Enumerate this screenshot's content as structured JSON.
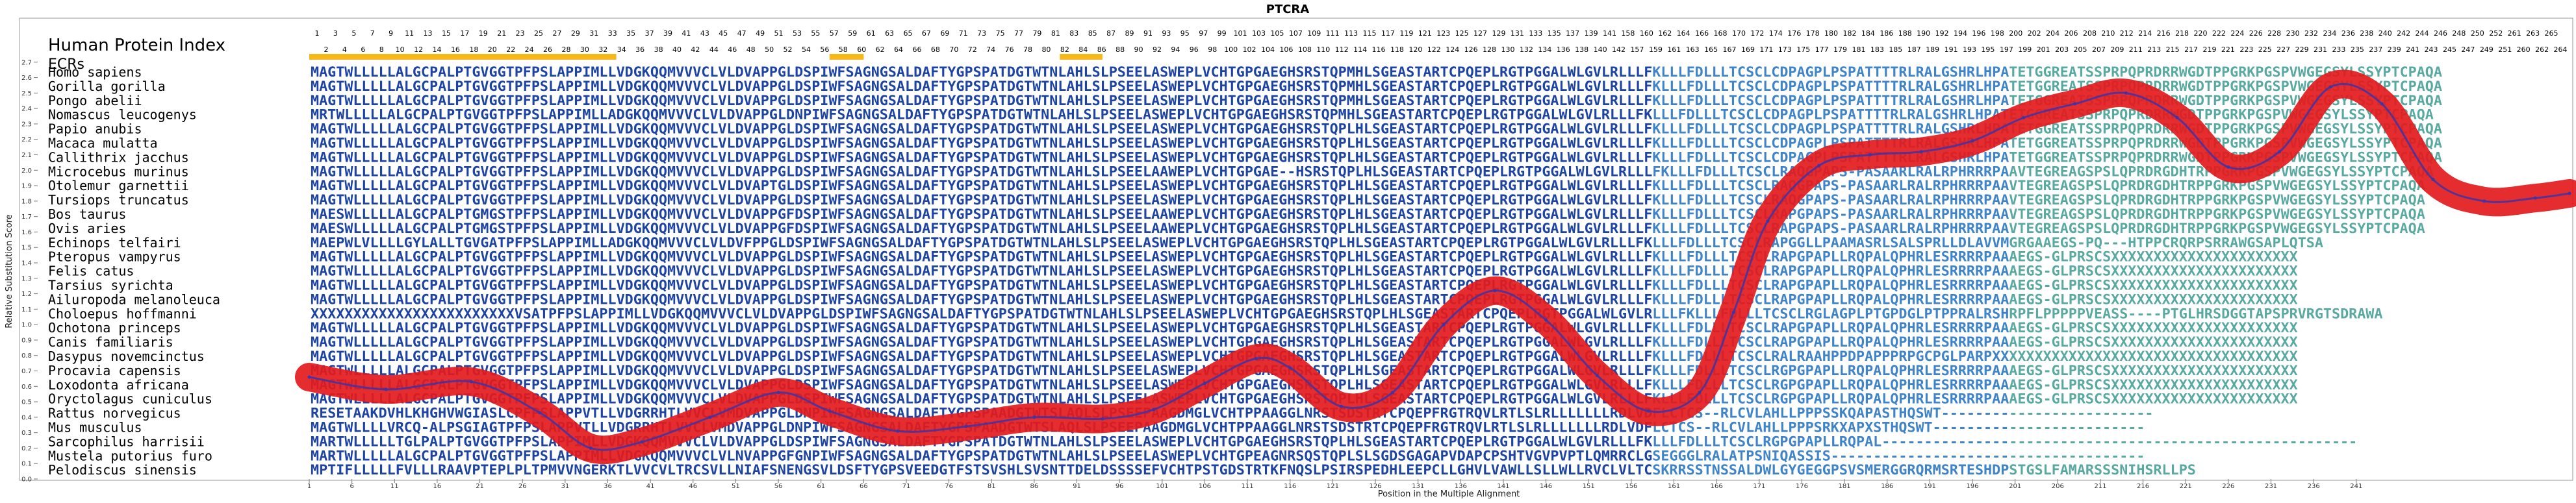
{
  "chart_data": {
    "type": "line",
    "title": "PTCRA",
    "xlabel": "Position in the Multiple Alignment",
    "ylabel": "Relative Substitution Score",
    "xlim": [
      1,
      266
    ],
    "ylim": [
      0,
      2.8
    ],
    "y_ticks": [
      0.0,
      0.1,
      0.2,
      0.3,
      0.4,
      0.5,
      0.6,
      0.7,
      0.8,
      0.9,
      1.0,
      1.1,
      1.2,
      1.3,
      1.4,
      1.5,
      1.6,
      1.7,
      1.8,
      1.9,
      2.0,
      2.1,
      2.2,
      2.3,
      2.4,
      2.5,
      2.6,
      2.7
    ],
    "x_ticks": [
      1,
      6,
      11,
      16,
      21,
      26,
      31,
      36,
      41,
      46,
      51,
      56,
      61,
      66,
      71,
      76,
      81,
      86,
      91,
      96,
      101,
      106,
      111,
      116,
      121,
      126,
      131,
      136,
      141,
      146,
      151,
      156,
      161,
      166,
      171,
      176,
      181,
      186,
      191,
      196,
      201,
      206,
      211,
      216,
      221,
      226,
      231,
      236,
      241
    ],
    "hpi_label": "Human Protein Index",
    "ecr_label": "ECRs",
    "hpi_odd": [
      1,
      3,
      5,
      7,
      9,
      11,
      13,
      15,
      17,
      19,
      21,
      23,
      25,
      27,
      29,
      31,
      33,
      35,
      37,
      39,
      41,
      43,
      45,
      47,
      49,
      51,
      53,
      55,
      57,
      59,
      61,
      63,
      65,
      67,
      69,
      71,
      73,
      75,
      77,
      79,
      81,
      83,
      85,
      87,
      89,
      91,
      93,
      95,
      97,
      99,
      101,
      103,
      105,
      107,
      109,
      111,
      113,
      115,
      117,
      119,
      121,
      123,
      125,
      127,
      129,
      131,
      133,
      135,
      137,
      139,
      141,
      158,
      160,
      162,
      164,
      166,
      168,
      170,
      172,
      174,
      176,
      178,
      180,
      182,
      184,
      186,
      188,
      190,
      192,
      194,
      196,
      198,
      200,
      202,
      204,
      206,
      208,
      210,
      212,
      214,
      216,
      218,
      220,
      222,
      224,
      226,
      228,
      230,
      232,
      234,
      236,
      238,
      240,
      242,
      244,
      246,
      248,
      250,
      252,
      261,
      263,
      265
    ],
    "hpi_even": [
      2,
      4,
      6,
      8,
      10,
      12,
      14,
      16,
      18,
      20,
      22,
      24,
      26,
      28,
      30,
      32,
      34,
      36,
      38,
      40,
      42,
      44,
      46,
      48,
      50,
      52,
      54,
      56,
      58,
      60,
      62,
      64,
      66,
      68,
      70,
      72,
      74,
      76,
      78,
      80,
      82,
      84,
      86,
      88,
      90,
      92,
      94,
      96,
      98,
      100,
      102,
      104,
      106,
      108,
      110,
      112,
      114,
      116,
      118,
      120,
      122,
      124,
      126,
      128,
      130,
      132,
      134,
      136,
      138,
      140,
      142,
      157,
      159,
      161,
      163,
      165,
      167,
      169,
      171,
      173,
      175,
      177,
      179,
      181,
      183,
      185,
      187,
      189,
      191,
      193,
      195,
      197,
      199,
      201,
      203,
      205,
      207,
      209,
      211,
      213,
      215,
      217,
      219,
      221,
      223,
      225,
      227,
      229,
      231,
      233,
      235,
      237,
      239,
      241,
      243,
      245,
      247,
      249,
      251,
      260,
      262,
      264
    ],
    "ecr_regions": [
      [
        1,
        37
      ],
      [
        62,
        66
      ],
      [
        89,
        94
      ]
    ],
    "colors": {
      "curve_outer": "#e31a1c",
      "curve_inner": "#3a35a8",
      "ecr_bar": "#f6b81a",
      "seq_conserved": "#1d43a3",
      "seq_variable": "#3f83c9",
      "seq_divergent": "#58a9a0"
    },
    "series": [
      {
        "name": "",
        "x": [
          1,
          10,
          20,
          28,
          34,
          40,
          48,
          56,
          62,
          70,
          78,
          86,
          94,
          100,
          106,
          112,
          116,
          122,
          128,
          134,
          140,
          146,
          152,
          158,
          164,
          168,
          172,
          178,
          184,
          190,
          196,
          202,
          208,
          214,
          220,
          226,
          232,
          238,
          244,
          250,
          256,
          262,
          266
        ],
        "y": [
          0.66,
          0.58,
          0.63,
          0.43,
          0.2,
          0.24,
          0.4,
          0.56,
          0.44,
          0.31,
          0.34,
          0.4,
          0.39,
          0.45,
          0.62,
          0.78,
          0.72,
          0.47,
          0.56,
          1.0,
          1.22,
          1.03,
          0.67,
          0.44,
          0.56,
          1.08,
          1.67,
          2.03,
          2.1,
          2.12,
          2.19,
          2.34,
          2.43,
          2.5,
          2.34,
          2.02,
          2.12,
          2.54,
          2.43,
          1.94,
          1.8,
          1.82,
          1.85
        ]
      }
    ]
  },
  "species": [
    {
      "name": "Homo sapiens",
      "seq": "MAGTWLLLLLALGCPALPTGVGGTPFPSLAPPIMLLVDGKQQMVVVCLVLDVAPPGLDSPIWFSAGNGSALDAFTYGPSPATDGTWTNLAHLSLPSEELASWEPLVCHTGPGAEGHSRSTQPMHLSGEASTARTCPQEPLRGTPGGALWLGVLRLLLFKLLLFDLLLTCSCLCDPAGPLPSPATTTTRLRALGSHRLHPATETGGREATSSPRPQPRDRRWGDTPPGRKPGSPVWGEGSYLSSYPTCPAQA"
    },
    {
      "name": "Gorilla gorilla",
      "seq": "MAGTWLLLLLALGCPALPTGVGGTPFPSLAPPIMLLVDGKQQMVVVCLVLDVAPPGLDSPIWFSAGNGSALDAFTYGPSPATDGTWTNLAHLSLPSEELASWEPLVCHTGPGAEGHSRSTQPMHLSGEASTARTCPQEPLRGTPGGALWLGVLRLLLFKLLLFDLLLTCSCLCDPAGPLPSPATTTTRLRALGSHRLHPATETGGREATSSPRPQPRDRRWGDTPPGRKPGSPVWGEGSYLSSYPTCPAQA"
    },
    {
      "name": "Pongo abelii",
      "seq": "MAGTWLLLLLALGCPALPTGVGGTPFPSLAPPIMLLVDGKQQMVVVCLVLDVAPPGLDSPIWFSAGNGSALDAFTYGPSPATDGTWTNLAHLSLPSEELASWEPLVCHTGPGAEGHSRSTQPMHLSGEASTARTCPQEPLRGTPGGALWLGVLRLLLFKLLLFDLLLTCSCLCDPAGPLPSPATTTTRLRALGSHRLHPATETGGREATSSPRPQPRDRRWGDTPPGRKPGSPVWGEGSYLSSYPTCPAQA"
    },
    {
      "name": "Nomascus leucogenys",
      "seq": "MRTWLLLLLALGCPALPTGVGGTPFPSLAPPIMLLADGKQQMVVVCLVLDVAPPGLDNPIWFSAGNGSALDAFTYGPSPATDGTWTNLAHLSLPSEELASWEPLVCHTGPGAEGHSRSTQPMHLSGEASTARTCPQEPLRGTPGGALWLGVLRLLLFKLLLFDLLLTCSCLCDPAGPLPSPATTTTRLRALGSHRLHPATETGGREATSSPRPQPRDRRWGDTPPGRKPGSPVWGEGSYLSSYPTCPAQA"
    },
    {
      "name": "Papio anubis",
      "seq": "MAGTWLLLLLALGCPALPTGVGGTPFPSLAPPIMLLVDGKQQMVVVCLVLDVAPPGLDSPIWFSAGNGSALDAFTYGPSPATDGTWTNLAHLSLPSEELASWEPLVCHTGPGAEGHSRSTQPLHLSGEASTARTCPQEPLRGTPGGALWLGVLRLLLFKLLLFDLLLTCSCLCDPAGPLPSPATTTTRLRALGSHRLHPATETGGREATSSPRPQPRDRRWGDTPPGRKPGSPVWGEGSYLSSYPTCPAQA"
    },
    {
      "name": "Macaca mulatta",
      "seq": "MAGTWLLLLLALGCPALPTGVGGTPFPSLAPPIMLLVDGKQQMVVVCLVLDVAPPGLDSPIWFSAGNGSALDAFTYGPSPATDGTWTNLAHLSLPSEELASWEPLVCHTGPGAEGHSRSTQPLHLSGEASTARTCPQEPLRGTPGGALWLGVLRLLLFKLLLFDLLLTCSCLCDPAGPLPSPATTTTRLRALGSHRLHPATETGGREATSSPRPQPRDRRWGDTPPGRKPGSPVWGEGSYLSSYPTCPAQA"
    },
    {
      "name": "Callithrix jacchus",
      "seq": "MAGTWLLLLLALGCPALPTGVGGTPFPSLAPPIMLLVDGKQQMVVVCLVLDVAPPGLDSPIWFSAGNGSALDAFTYGPSPATDGTWTNLAHLSLPSEELASWEPLVCHTGPGAEGHSRSTQPLHLSGEASTARTCPQEPLRGTPGGALWLGVLRLLLFKLLLFDLLLTCSCLCDPAGPLPSPATTTTRLRALGSHRLHPATETGGREATSSPRPQPRDRRWGDTPPGRKPGSPVWGEGSYLSSYPTCPAQA"
    },
    {
      "name": "Microcebus murinus",
      "seq": "MAGTWLLLLLALGCPALPTGVGGTPFPSLAPPIMLLVDGKQQMVVVCLVLDVAPPGLDSPIWFSAGNGSALDAFTYGPSPATDGTWTNLAHLSLPSEELAAWEPLVCHTGPGAE--HSRSTQPLHLSGEASTARTCPQEPLRGTPGGALWLGVLRLLLFKLLLFDLLLTCSCLRAQGPAPS-PASAARLRALRPHRRRPAAVTEGREAGSPSLQPRDRGDHTRPPGRKPGSPVWGEGSYLSSYPTCPAQA"
    },
    {
      "name": "Otolemur garnettii",
      "seq": "MAGTWLLLLLALGCPALPTGVGGTPFPSLAPPIMLLVDGKQQMVVVCLVLDVAPTGLDSPIWFSAGNGSALDAFTYGPSPATDGTWTNLAHLSLPSEELASWEPLVCHTGPGAEGHSRSTQPLHLSGEASTARTCPQEPLRGTPGGALWLGVLRLLLFKLLLFDLLLTCSCLRAQGPAPS-PASAARLRALRPHRRRPAAVTEGREAGSPSLQPRDRGDHTRPPGRKPGSPVWGEGSYLSSYPTCPAQA"
    },
    {
      "name": "Tursiops truncatus",
      "seq": "MAGTWLLLLLALGCPALPTGVGGTPFPSLAPPIMLLVDGKQQMVVVCLVLDVAPPGLDSPIWFSAGNGSALDAFTYGPSPATDGTWTNLAHLSLPSEELASWEPLVCHTGPGAEGHSRSTQPLHLSGEASTARTCPQEPLRGTPGGALWLGVLRLLLFKLLLFDLLLTCSCLRAQGPAPS-PASAARLRALRPHRRRPAAVTEGREAGSPSLQPRDRGDHTRPPGRKPGSPVWGEGSYLSSYPTCPAQA"
    },
    {
      "name": "Bos taurus",
      "seq": "MAESWLLLLLALGCPALPTGMGSTPFPSLAPPIMLLVDGKQQMVVVCLVLDVAPPGFDSPIWFSAGNGSALDAFTYGPSPATDGTWTNLAHLSLPSEELAAWEPLVCHTGPGAEGHSRSTQPLHLSGEASTARTCPQEPLRGTPGGALWLGVLRLLLFKLLLFDLLLTCSCLRAPGPAPS-PASAARLRALRPHRRRPAAVTEGREAGSPSLQPRDRGDHTRPPGRKPGSPVWGEGSYLSSYPTCPAQA"
    },
    {
      "name": "Ovis aries",
      "seq": "MAESWLLLLLALGCPALPTGMGSTPFPSLAPPIMLLVDGKQQMVVVCLVLDVAPPGFDSPIWFSAGNGSALDAFTYGPSPATDGTWTNLAHLSLPSEELAAWEPLVCHTGPGAEGHSRSTQPLHLSGEASTARTCPQEPLRGTPGGALWLGVLRLLLFKLLLFDLLLTCSCLRAPGPAPS-PASAARLRALRPHRRRPAAVTEGREAGSPSLQPRDRGDHTRPPGRKPGSPVWGEGSYLSSYPTCPAQA"
    },
    {
      "name": "Echinops telfairi",
      "seq": "MAEPWLVLLLLGYLALLTGVGATPFPSLAPPIMLLADGKQQMVVVCLVLDVFPPGLDSPIWFSAGNGSALDAFTYGPSPATDGTWTNLAHLSLPSEELASWEPLVCHTGPGAEGHSRSTQPLHLSGEASTARTCPQEPLRGTPGGALWLGVLRLLLFKLLLFDLLLTCSCLRAPGGLLPAAMASRLSALSPRLLDLAVVMGRGAAEGS-PQ---HTPPCRQRPSRRAWGSAPLQTSA"
    },
    {
      "name": "Pteropus vampyrus",
      "seq": "MAGTWLLLLLALGCPALPTGVGGTPFPSLAPPIMLLVDGKQQMVVVCLVLDVAPPGLDSPIWFSAGNGSALDAFTYGPSPATDGTWTNLAHLSLPSEELASWEPLVCHTGPGAEGHSRSTQPLHLSGEASTARTCPQEPLRGTPGGALWLGVLRLLLFKLLLFDLLLTCSCLRAPGPAPLLRQPALQPHRLESRRRRPAAAEGS-GLPRSCSXXXXXXXXXXXXXXXXXXXXXX"
    },
    {
      "name": "Felis catus",
      "seq": "MAGTWLLLLLALGCPALPTGVGGTPFPSLAPPIMLLVDGKQQMVVVCLVLDVAPPGLDSPIWFSAGNGSALDAFTYGPSPATDGTWTNLAHLSLPSEELASWEPLVCHTGPGAEGHSRSTQPLHLSGEASTARTCPQEPLRGTPGGALWLGVLRLLLFKLLLFDLLLTCSCLRAPGPAPLLRQPALQPHRLESRRRRPAAAEGS-GLPRSCSXXXXXXXXXXXXXXXXXXXXXX"
    },
    {
      "name": "Tarsius syrichta",
      "seq": "MAGTWLLLLLALGCPALPTGVGGTPFPSLAPPIMLLVDGKQQMVVVCLVLDVAPPGLDSPIWFSAGNGSALDAFTYGPSPATDGTWTNLAHLSLPSEELASWEPLVCHTGPGAEGHSRSTQPLHLSGEASTARTCPQEPLRGTPGGALWLGVLRLLLFKLLLFDLLLTCSCLRAPGPAPLLRQPALQPHRLESRRRRPAAAEGS-GLPRSCSXXXXXXXXXXXXXXXXXXXXXX"
    },
    {
      "name": "Ailuropoda melanoleuca",
      "seq": "MAGTWLLLLLALGCPALPTGVGGTPFPSLAPPIMLLVDGKQQMVVVCLVLDVAPPGLDSPIWFSAGNGSALDAFTYGPSPATDGTWTNLAHLSLPSEELASWEPLVCHTGPGAEGHSRSTQPLHLSGEASTARTCPQEPLRGTPGGALWLGVLRLLLFKLLLFDLLLTCSCLRAPGPAPLLRQPALQPHRLESRRRRPAAAEGS-GLPRSCSXXXXXXXXXXXXXXXXXXXXXX"
    },
    {
      "name": "Choloepus hoffmanni",
      "seq": "XXXXXXXXXXXXXXXXXXXXXXXXVSATPFPSLAPPIMLLVDGKQQMVVVCLVLDVAPPGLDSPIWFSAGNGSALDAFTYGPSPATDGTWTNLAHLSLPSEELASWEPLVCHTGPGAEGHSRSTQPLHLSGEASTARTCPQEPLRGTPGGALWLGVLRLLLFKLLLFDLLLTCSCLRGLAGPLPTGPDGLPTPPRALRSHRPFLPPPPPVEASS----PTGLHRSDGGTAPSPRVRGTSDRAWA"
    },
    {
      "name": "Ochotona princeps",
      "seq": "MAGTWLLLLLALGCPALPTGVGGTPFPSLAPPIMLLVDGKQQMVVVCLVLDVAPPGLDSPIWFSAGNGSALDAFTYGPSPATDGTWTNLAHLSLPSEELASWEPLVCHTGPGAEGHSRSTQPLHLSGEASTARTCPQEPLRGTPGGALWLGVLRLLLFKLLLFDLLLTCSCLRAPGPAPLLRQPALQPHRLESRRRRPAAAEGS-GLPRSCSXXXXXXXXXXXXXXXXXXXXXX"
    },
    {
      "name": "Canis familiaris",
      "seq": "MAGTWLLLLLALGCPALPTGVGGTPFPSLAPPIMLLVDGKQQMVVVCLVLDVAPPGLDSPIWFSAGNGSALDAFTYGPSPATDGTWTNLAHLSLPSEELASWEPLVCHTGPGAEGHSRSTQPLHLSGEASTARTCPQEPLRGTPGGALWLGVLRLLLFKLLLFDLLLTCSCLRAPGPAPLLRQPALQPHRLESRRRRPAAAEGS-GLPRSCSXXXXXXXXXXXXXXXXXXXXXX"
    },
    {
      "name": "Dasypus novemcinctus",
      "seq": "MAGTWLLLLLALGCPALPTGVGGTPFPSLAPPIMLLVDGKQQMVVVCLVLDVAPPGLDSPIWFSAGNGSALDAFTYGPSPATDGTWTNLAHLSLPSEELASWEPLVCHTGPGAEGHSRSTQPLHLSGEASTARTCPQEPLRGTPGGALWLGVLRLLLFKLLLFDLLLTCSCLRALRAAHPPDPAPPPRPGCPGLPARPXXXXXXXXXXXXXXXXXXXXXXXXXXXXXXXXXXXX"
    },
    {
      "name": "Procavia capensis",
      "seq": "MAGTWLLLLLALGCPALPTGVGGTPFPSLAPPIMLLVDGKQQMVVVCLVLDVAPPGLDSPIWFSAGNGSALDAFTYGPSPATDGTWTNLAHLSLPSEELASWEPLVCHTGPGAEGHSRSTQPLHLSGEASTARTCPQEPLRGTPGGALWLGVLRLLLFKLLLFDLLLTCSCLRGPGPAPLLRQPALQPHRLESRRRRPAAAEGS-GLPRSCSXXXXXXXXXXXXXXXXXXXXXX"
    },
    {
      "name": "Loxodonta africana",
      "seq": "MAGTWLLLLLALGCPALPTGVGGTPFPSLAPPIMLLVDGKQQMVVVCLVLDVAPPGLDSPIWFSAGNGSALDAFTYGPSPATDGTWTNLAHLSLPSEELASWEPLVCHTGPGAEGHSRSTQPLHLSGEASTARTCPQEPLRGTPGGALWLGVLRLLLFKLLLFDLLLTCSCLRGPGPAPLLRQPALQPHRLESRRRRPAAAEGS-GLPRSCSXXXXXXXXXXXXXXXXXXXXXX"
    },
    {
      "name": "Oryctolagus cuniculus",
      "seq": "MAGTWLLLLLALGCPALPTGVGGTPFPSLAPPIMLLVDGKQQMVVVCLVLDVAPPGLDSPIWFSAGNGSALDAFTYGPSPATDGTWTNLAHLSLPSEELASWEPLVCHTGPGAEGHSRSTQPLHLSGEASTARTCPQEPLRGTPGGALWLGVLRLLLFKLLLFDLLLTCSCLRGPGPAPLLRQPALQPHRLESRRRRPAAAEGS-GLPRSCSXXXXXXXXXXXXXXXXXXXXXX"
    },
    {
      "name": "Rattus norvegicus",
      "seq": "RESETAAKDVHLKHGHVWGIASLCPFPSLAPPVTLLVDGRRHTLVVCLVMDVAPPGLDNPIWFSAGNGSALDAFTYGPSPAADGTWTSLAQLSLPSEEPAAGDMGLVCHTPPAAGGLNRSTSDSTRTCPQEPFRGTRQVLRTLSLRLLLLLLLRDLVDFLCTCS--RLCVLAHLLPPPSSKQAPASTHQSWT-------------------------"
    },
    {
      "name": "Mus musculus",
      "seq": "MAGTWLLLLVRCQ-ALPSGIAGTPFPSLAPPVTLLVDGRRHTLVVCLVMDVAPPGLDNPIWFSAGNGSALDAFTYGPSPAADGTWTSLAQLSLPSEEPAAGDMGLVCHTPPAAGGLNRSTSDSTRTCPQEPFRGTRQVLRTLSLRLLLLLLLRDLVDFLCTCS--RLCVLAHLLPPPSRKXAPXSTHQSWT-------------------------"
    },
    {
      "name": "Sarcophilus harrisii",
      "seq": "MARTWLLLLLTGLPALPTGVGGTPFPSLAPPIMLLVDGKQQMVVVCLVLDVAPPGLDSPIWFSAGNGSALDAFTYGPSPATDGTWTNLAHLSLPSEELASWEPLVCHTGPGAEGHSRSTQPLHLSGEASTARTCPQEPLRGTPGGALWLGVLRLLLFKLLLFDLLLTCSCLRGPGPAPLLRQPAL--------------------------------------------------------"
    },
    {
      "name": "Mustela putorius furo",
      "seq": "MARTWLLLLLALGCPALPTGVGGTPFPSLAPPIMLLVDGKQQMVVVCLVLNVAPPGFGNPIWFSAGNGSALDAFTYGPSPATDGTWTNLAHLSLPSEELASWEPLVCHTGPEAGNRSQSTQPLSLSGDSGAGAPVDAPCPSHTVGVPVPTLQMRRCLGSEGGGLRALATPSNIQASSIS-------------------------------------"
    },
    {
      "name": "Pelodiscus sinensis",
      "seq": "MPTIFLLLLLFVLLLRAAVPTEPLPLTPMVVNGERKTLVVCVLTRCSVLLNIAFSNENGSVLDSFTYGPSVEEDGTFSTSVSHLSVSNTTDELDSSSSEFVCHTPSTGDSTRTKFNQSLPSIRSPEDHLEEPCLLGHVLVAWLLSLLWLLRVCLVLTCSKRRSSTNSSALDWLGYGEGGPSVSMERGGRQRMSRTESHDPSTGSLFAMARSSSNIHSRLLPS"
    }
  ]
}
